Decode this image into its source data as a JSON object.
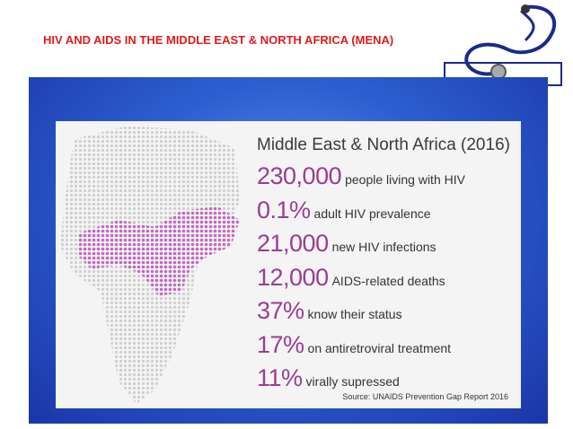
{
  "header": {
    "title": "HIV AND AIDS IN THE MIDDLE EAST & NORTH AFRICA (MENA)"
  },
  "card": {
    "heading": "Middle East & North Africa (2016)",
    "stats": [
      {
        "value": "230,000",
        "label": "people living with HIV"
      },
      {
        "value": "0.1%",
        "label": "adult HIV prevalence"
      },
      {
        "value": "21,000",
        "label": "new HIV infections"
      },
      {
        "value": "12,000",
        "label": "AIDS-related deaths"
      },
      {
        "value": "37%",
        "label": "know their status"
      },
      {
        "value": "17%",
        "label": "on antiretroviral treatment"
      },
      {
        "value": "11%",
        "label": "virally supressed"
      }
    ],
    "source": "Source: UNAIDS Prevention Gap Report 2016"
  }
}
